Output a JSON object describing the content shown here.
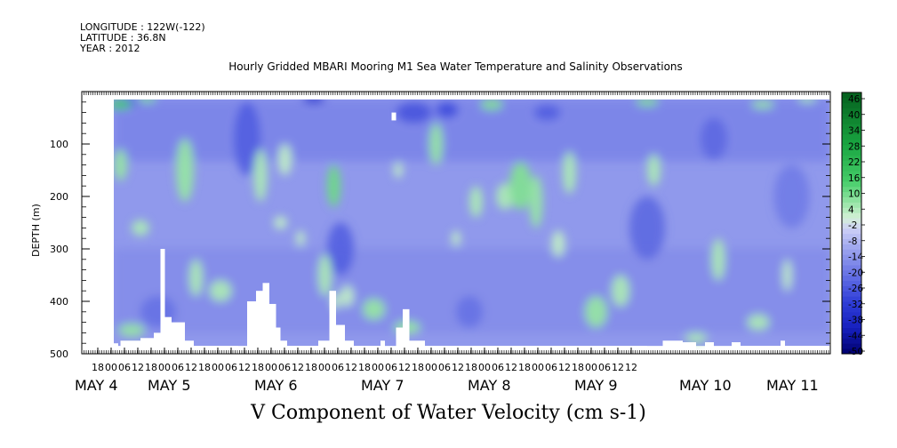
{
  "header": {
    "longitude": "LONGITUDE : 122W(-122)",
    "latitude": "LATITUDE : 36.8N",
    "year": "YEAR : 2012"
  },
  "chart_data": {
    "type": "heatmap",
    "title": "Hourly Gridded MBARI Mooring M1 Sea Water Temperature and Salinity Observations",
    "xlabel": "V Component of Water Velocity (cm s-1)",
    "ylabel": "DEPTH (m)",
    "y_axis": {
      "range": [
        500,
        0
      ],
      "inverted": true,
      "tick_values": [
        100,
        200,
        300,
        400,
        500
      ],
      "tick_labels": [
        "100",
        "200",
        "300",
        "400",
        "500"
      ],
      "minor_step": 20
    },
    "x_axis": {
      "hours_per_tick": 6,
      "hour_tick_labels": [
        "18",
        "00",
        "06",
        "12",
        "18",
        "00",
        "06",
        "12",
        "18",
        "00",
        "06",
        "12",
        "18",
        "00",
        "06",
        "12",
        "18",
        "00",
        "06",
        "12",
        "18",
        "00",
        "06",
        "12",
        "18",
        "00",
        "06",
        "12",
        "18",
        "00",
        "06",
        "12",
        "18",
        "00",
        "06",
        "12",
        "18",
        "00",
        "06",
        "12",
        "12"
      ],
      "day_labels": [
        "MAY  4",
        "MAY  5",
        "MAY  6",
        "MAY  7",
        "MAY  8",
        "MAY  9",
        "MAY 10",
        "MAY 11"
      ]
    },
    "data_extent": {
      "depth_top": 15,
      "depth_bottom": 485
    },
    "colorbar": {
      "levels": [
        -50,
        -48,
        -46,
        -44,
        -42,
        -40,
        -38,
        -36,
        -34,
        -32,
        -30,
        -28,
        -26,
        -24,
        -22,
        -20,
        -18,
        -16,
        -14,
        -12,
        -10,
        -8,
        -6,
        -4,
        -2,
        0,
        2,
        4,
        6,
        8,
        10,
        12,
        14,
        16,
        18,
        20,
        22,
        24,
        26,
        28,
        30,
        32,
        34,
        36,
        38,
        40,
        42,
        44,
        46,
        48,
        50
      ],
      "labels": [
        "46",
        "40",
        "34",
        "28",
        "22",
        "16",
        "10",
        "4",
        "-2",
        "-8",
        "-14",
        "-20",
        "-26",
        "-32",
        "-38",
        "-44",
        "-50"
      ]
    },
    "field_range_observed": [
      -36,
      20
    ],
    "green_patches": [
      {
        "hour": 3,
        "depth": 25,
        "w": 5,
        "h": 18,
        "v": 16
      },
      {
        "hour": 15,
        "depth": 15,
        "w": 4,
        "h": 12,
        "v": 10
      },
      {
        "hour": 3,
        "depth": 140,
        "w": 3,
        "h": 60,
        "v": 8
      },
      {
        "hour": 12,
        "depth": 260,
        "w": 4,
        "h": 30,
        "v": 6
      },
      {
        "hour": 32,
        "depth": 150,
        "w": 4,
        "h": 120,
        "v": 8
      },
      {
        "hour": 37,
        "depth": 355,
        "w": 3,
        "h": 70,
        "v": 6
      },
      {
        "hour": 8,
        "depth": 455,
        "w": 6,
        "h": 25,
        "v": 8
      },
      {
        "hour": 48,
        "depth": 380,
        "w": 5,
        "h": 40,
        "v": 6
      },
      {
        "hour": 66,
        "depth": 160,
        "w": 3,
        "h": 100,
        "v": 6
      },
      {
        "hour": 75,
        "depth": 250,
        "w": 3,
        "h": 25,
        "v": 4
      },
      {
        "hour": 77,
        "depth": 130,
        "w": 3,
        "h": 60,
        "v": 4
      },
      {
        "hour": 84,
        "depth": 280,
        "w": 2,
        "h": 30,
        "v": 4
      },
      {
        "hour": 95,
        "depth": 350,
        "w": 3,
        "h": 80,
        "v": 6
      },
      {
        "hour": 99,
        "depth": 180,
        "w": 3,
        "h": 80,
        "v": 12
      },
      {
        "hour": 100,
        "depth": 400,
        "w": 2,
        "h": 30,
        "v": 4
      },
      {
        "hour": 105,
        "depth": 390,
        "w": 3,
        "h": 40,
        "v": 4
      },
      {
        "hour": 117,
        "depth": 415,
        "w": 5,
        "h": 40,
        "v": 8
      },
      {
        "hour": 128,
        "depth": 150,
        "w": 2,
        "h": 30,
        "v": 4
      },
      {
        "hour": 132,
        "depth": 450,
        "w": 6,
        "h": 25,
        "v": 8
      },
      {
        "hour": 145,
        "depth": 100,
        "w": 3,
        "h": 80,
        "v": 8
      },
      {
        "hour": 154,
        "depth": 280,
        "w": 2,
        "h": 30,
        "v": 4
      },
      {
        "hour": 163,
        "depth": 210,
        "w": 3,
        "h": 60,
        "v": 6
      },
      {
        "hour": 170,
        "depth": 25,
        "w": 5,
        "h": 20,
        "v": 10
      },
      {
        "hour": 176,
        "depth": 200,
        "w": 4,
        "h": 50,
        "v": 6
      },
      {
        "hour": 183,
        "depth": 180,
        "w": 5,
        "h": 90,
        "v": 10
      },
      {
        "hour": 190,
        "depth": 210,
        "w": 3,
        "h": 100,
        "v": 8
      },
      {
        "hour": 205,
        "depth": 155,
        "w": 3,
        "h": 80,
        "v": 6
      },
      {
        "hour": 200,
        "depth": 290,
        "w": 3,
        "h": 50,
        "v": 4
      },
      {
        "hour": 217,
        "depth": 420,
        "w": 5,
        "h": 60,
        "v": 8
      },
      {
        "hour": 228,
        "depth": 380,
        "w": 4,
        "h": 60,
        "v": 6
      },
      {
        "hour": 240,
        "depth": 20,
        "w": 5,
        "h": 15,
        "v": 10
      },
      {
        "hour": 243,
        "depth": 150,
        "w": 3,
        "h": 60,
        "v": 6
      },
      {
        "hour": 262,
        "depth": 470,
        "w": 5,
        "h": 20,
        "v": 6
      },
      {
        "hour": 272,
        "depth": 320,
        "w": 3,
        "h": 80,
        "v": 6
      },
      {
        "hour": 292,
        "depth": 25,
        "w": 5,
        "h": 15,
        "v": 8
      },
      {
        "hour": 290,
        "depth": 440,
        "w": 5,
        "h": 30,
        "v": 6
      },
      {
        "hour": 303,
        "depth": 350,
        "w": 2,
        "h": 60,
        "v": 4
      },
      {
        "hour": 312,
        "depth": 15,
        "w": 4,
        "h": 12,
        "v": 6
      }
    ],
    "blue_patches": [
      {
        "hour": 90,
        "depth": 15,
        "w": 5,
        "h": 15,
        "v": -34
      },
      {
        "hour": 6,
        "depth": 20,
        "w": 5,
        "h": 15,
        "v": -26
      },
      {
        "hour": 60,
        "depth": 90,
        "w": 6,
        "h": 140,
        "v": -24
      },
      {
        "hour": 102,
        "depth": 300,
        "w": 6,
        "h": 100,
        "v": -24
      },
      {
        "hour": 135,
        "depth": 40,
        "w": 8,
        "h": 40,
        "v": -26
      },
      {
        "hour": 150,
        "depth": 35,
        "w": 5,
        "h": 30,
        "v": -28
      },
      {
        "hour": 195,
        "depth": 40,
        "w": 6,
        "h": 30,
        "v": -24
      },
      {
        "hour": 240,
        "depth": 260,
        "w": 8,
        "h": 120,
        "v": -22
      },
      {
        "hour": 270,
        "depth": 90,
        "w": 6,
        "h": 80,
        "v": -22
      },
      {
        "hour": 20,
        "depth": 420,
        "w": 8,
        "h": 60,
        "v": -20
      },
      {
        "hour": 160,
        "depth": 420,
        "w": 6,
        "h": 60,
        "v": -20
      },
      {
        "hour": 305,
        "depth": 200,
        "w": 8,
        "h": 120,
        "v": -18
      }
    ],
    "blank_masks": [
      {
        "hour0": 0,
        "hour1": 2,
        "depth0": 480,
        "depth1": 500
      },
      {
        "hour0": 3,
        "hour1": 12,
        "depth0": 475,
        "depth1": 500
      },
      {
        "hour0": 12,
        "hour1": 18,
        "depth0": 470,
        "depth1": 500
      },
      {
        "hour0": 18,
        "hour1": 21,
        "depth0": 460,
        "depth1": 500
      },
      {
        "hour0": 21,
        "hour1": 23,
        "depth0": 300,
        "depth1": 500
      },
      {
        "hour0": 23,
        "hour1": 26,
        "depth0": 430,
        "depth1": 500
      },
      {
        "hour0": 26,
        "hour1": 32,
        "depth0": 440,
        "depth1": 500
      },
      {
        "hour0": 32,
        "hour1": 36,
        "depth0": 475,
        "depth1": 500
      },
      {
        "hour0": 36,
        "hour1": 56,
        "depth0": 485,
        "depth1": 500
      },
      {
        "hour0": 60,
        "hour1": 64,
        "depth0": 400,
        "depth1": 500
      },
      {
        "hour0": 64,
        "hour1": 67,
        "depth0": 380,
        "depth1": 500
      },
      {
        "hour0": 67,
        "hour1": 70,
        "depth0": 365,
        "depth1": 500
      },
      {
        "hour0": 70,
        "hour1": 73,
        "depth0": 405,
        "depth1": 500
      },
      {
        "hour0": 73,
        "hour1": 75,
        "depth0": 450,
        "depth1": 500
      },
      {
        "hour0": 75,
        "hour1": 78,
        "depth0": 475,
        "depth1": 500
      },
      {
        "hour0": 78,
        "hour1": 92,
        "depth0": 485,
        "depth1": 500
      },
      {
        "hour0": 92,
        "hour1": 97,
        "depth0": 475,
        "depth1": 500
      },
      {
        "hour0": 97,
        "hour1": 100,
        "depth0": 380,
        "depth1": 500
      },
      {
        "hour0": 100,
        "hour1": 104,
        "depth0": 445,
        "depth1": 500
      },
      {
        "hour0": 104,
        "hour1": 108,
        "depth0": 475,
        "depth1": 500
      },
      {
        "hour0": 108,
        "hour1": 120,
        "depth0": 485,
        "depth1": 500
      },
      {
        "hour0": 120,
        "hour1": 122,
        "depth0": 475,
        "depth1": 500
      },
      {
        "hour0": 127,
        "hour1": 130,
        "depth0": 450,
        "depth1": 500
      },
      {
        "hour0": 130,
        "hour1": 133,
        "depth0": 415,
        "depth1": 500
      },
      {
        "hour0": 133,
        "hour1": 140,
        "depth0": 475,
        "depth1": 500
      },
      {
        "hour0": 140,
        "hour1": 240,
        "depth0": 485,
        "depth1": 500
      },
      {
        "hour0": 247,
        "hour1": 256,
        "depth0": 475,
        "depth1": 500
      },
      {
        "hour0": 256,
        "hour1": 262,
        "depth0": 478,
        "depth1": 500
      },
      {
        "hour0": 266,
        "hour1": 270,
        "depth0": 478,
        "depth1": 500
      },
      {
        "hour0": 278,
        "hour1": 282,
        "depth0": 478,
        "depth1": 500
      },
      {
        "hour0": 282,
        "hour1": 300,
        "depth0": 485,
        "depth1": 500
      },
      {
        "hour0": 300,
        "hour1": 302,
        "depth0": 475,
        "depth1": 500
      },
      {
        "hour0": 302,
        "hour1": 330,
        "depth0": 485,
        "depth1": 500
      },
      {
        "hour0": 125,
        "hour1": 127,
        "depth0": 40,
        "depth1": 55
      }
    ]
  },
  "colors": {
    "background": "#ffffff",
    "axis": "#000000",
    "pale_blue": "#c3c8f2",
    "mid_blue": "#7b86e5",
    "deep_blue": "#2c35cc",
    "pale_green": "#bcecc2",
    "mid_green": "#57d77a",
    "deep_green": "#0f8a2e"
  }
}
